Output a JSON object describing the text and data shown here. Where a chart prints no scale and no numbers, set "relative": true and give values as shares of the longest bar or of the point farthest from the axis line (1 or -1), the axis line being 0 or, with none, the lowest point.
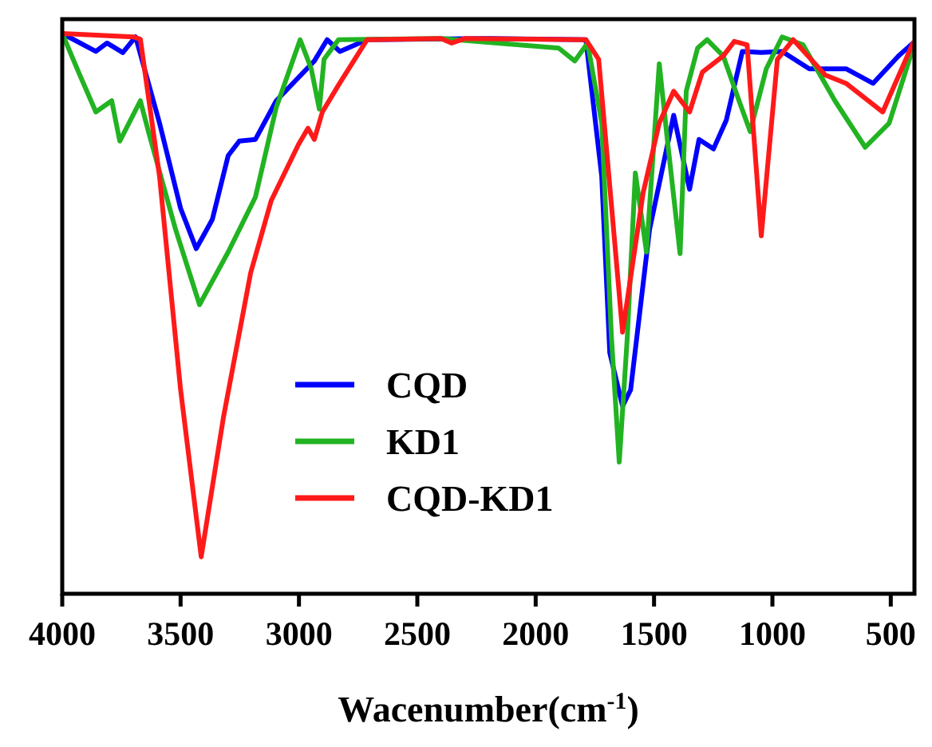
{
  "chart_data": {
    "type": "line",
    "relative": true,
    "xlabel": "Wacenumber(cm$^{-1}$)",
    "xlim": [
      4000,
      400
    ],
    "xticks": [
      4000,
      3500,
      3000,
      2500,
      2000,
      1500,
      1000,
      500
    ],
    "legend": "bottom",
    "grid": false,
    "line_style": "solid",
    "tick_labels": "x",
    "series": [
      {
        "name": "CQD",
        "color": "#0000ff",
        "x": [
          4000,
          3858,
          3811,
          3744,
          3690,
          3589,
          3500,
          3434,
          3366,
          3299,
          3252,
          3184,
          3096,
          2935,
          2881,
          2827,
          2712,
          2200,
          1788,
          1721,
          1687,
          1633,
          1599,
          1519,
          1417,
          1350,
          1310,
          1249,
          1195,
          1127,
          1047,
          959,
          844,
          689,
          575,
          467,
          406
        ],
        "values": [
          1,
          0.968,
          0.983,
          0.966,
          0.994,
          0.84,
          0.688,
          0.616,
          0.668,
          0.782,
          0.808,
          0.811,
          0.88,
          0.951,
          0.989,
          0.968,
          0.989,
          0.991,
          0.989,
          0.745,
          0.43,
          0.335,
          0.364,
          0.65,
          0.854,
          0.722,
          0.811,
          0.794,
          0.845,
          0.968,
          0.966,
          0.968,
          0.937,
          0.937,
          0.911,
          0.96,
          0.983
        ]
      },
      {
        "name": "KD1",
        "color": "#22b322",
        "x": [
          4000,
          3926,
          3858,
          3791,
          3757,
          3670,
          3636,
          3521,
          3420,
          3299,
          3184,
          3096,
          2995,
          2948,
          2914,
          2894,
          2833,
          2400,
          1903,
          1835,
          1781,
          1721,
          1680,
          1647,
          1613,
          1579,
          1532,
          1478,
          1444,
          1390,
          1364,
          1316,
          1276,
          1208,
          1141,
          1094,
          1026,
          959,
          871,
          736,
          608,
          507,
          406
        ],
        "values": [
          1,
          0.926,
          0.86,
          0.88,
          0.808,
          0.88,
          0.825,
          0.65,
          0.516,
          0.61,
          0.708,
          0.868,
          0.989,
          0.937,
          0.865,
          0.954,
          0.989,
          0.991,
          0.974,
          0.951,
          0.983,
          0.84,
          0.458,
          0.235,
          0.458,
          0.751,
          0.61,
          0.946,
          0.811,
          0.607,
          0.897,
          0.974,
          0.989,
          0.96,
          0.88,
          0.825,
          0.937,
          0.994,
          0.98,
          0.88,
          0.797,
          0.84,
          0.974
        ]
      },
      {
        "name": "CQD-KD1",
        "color": "#ff1a1a",
        "x": [
          4000,
          3700,
          3670,
          3589,
          3500,
          3413,
          3319,
          3204,
          3117,
          3002,
          2962,
          2935,
          2901,
          2833,
          2712,
          2400,
          2355,
          2300,
          1788,
          1734,
          1633,
          1546,
          1478,
          1417,
          1350,
          1296,
          1208,
          1161,
          1107,
          1047,
          979,
          912,
          777,
          689,
          534,
          406
        ],
        "values": [
          1,
          0.994,
          0.99,
          0.745,
          0.364,
          0.066,
          0.315,
          0.573,
          0.702,
          0.802,
          0.831,
          0.811,
          0.86,
          0.908,
          0.989,
          0.991,
          0.983,
          0.991,
          0.989,
          0.954,
          0.467,
          0.716,
          0.84,
          0.897,
          0.86,
          0.931,
          0.96,
          0.986,
          0.98,
          0.639,
          0.954,
          0.989,
          0.926,
          0.911,
          0.86,
          0.983
        ]
      }
    ]
  }
}
